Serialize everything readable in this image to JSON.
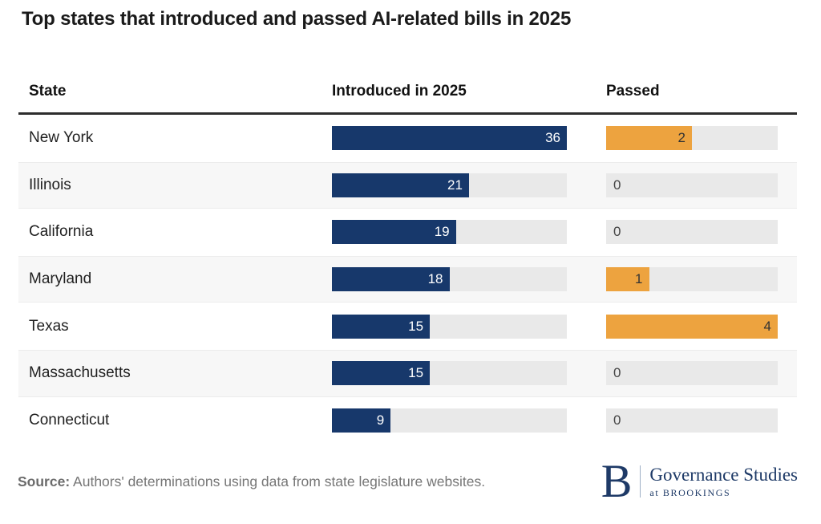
{
  "title": "Top states that introduced and passed AI-related bills in 2025",
  "table": {
    "columns": [
      "State",
      "Introduced in 2025",
      "Passed"
    ]
  },
  "chart_data": {
    "type": "bar",
    "title": "Top states that introduced and passed AI-related bills in 2025",
    "categories": [
      "New York",
      "Illinois",
      "California",
      "Maryland",
      "Texas",
      "Massachusetts",
      "Connecticut"
    ],
    "series": [
      {
        "name": "Introduced in 2025",
        "values": [
          36,
          21,
          19,
          18,
          15,
          15,
          9
        ],
        "color": "#17386b",
        "max": 36,
        "label_style": "white-inside-right"
      },
      {
        "name": "Passed",
        "values": [
          2,
          0,
          0,
          1,
          4,
          0,
          0
        ],
        "color": "#eda33f",
        "max": 4,
        "label_style": "dark-inside-right, zero-left-in-track"
      }
    ],
    "layout": {
      "orientation": "horizontal",
      "grid": false,
      "legend": "none",
      "track_color": "#e9e9e9",
      "stripe_color": "#f7f7f7"
    }
  },
  "footer": {
    "source_label": "Source:",
    "source_text": " Authors' determinations using data from state legislature websites.",
    "logo": {
      "monogram": "B",
      "name": "Governance Studies",
      "sub": "at BROOKINGS"
    }
  },
  "colors": {
    "introduced_bar": "#17386b",
    "passed_bar": "#eda33f",
    "track": "#e9e9e9",
    "stripe": "#f7f7f7",
    "header_rule": "#2d2d2d",
    "logo_navy": "#1e3a67"
  }
}
